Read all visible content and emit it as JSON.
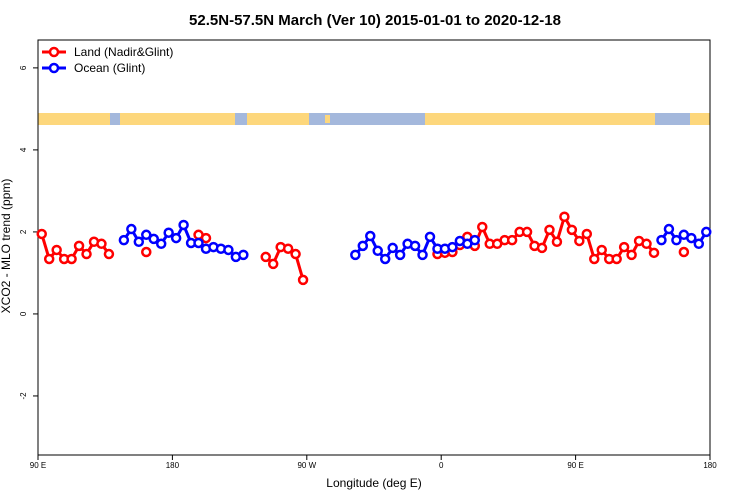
{
  "chart_data": {
    "type": "line",
    "title": "52.5N-57.5N March (Ver 10)   2015-01-01 to 2020-12-18",
    "x_label": "Longitude (deg E)",
    "y_label": "XCO2 - MLO trend (ppm)",
    "xlim": [
      90,
      540
    ],
    "ylim": [
      -3.44,
      6.68
    ],
    "xticks": [
      {
        "value": 90,
        "label": "90 E"
      },
      180,
      {
        "value": 270,
        "label": "90 W"
      },
      {
        "value": 360,
        "label": "0"
      },
      {
        "value": 450,
        "label": "90 E"
      },
      {
        "value": 540,
        "label": "180"
      }
    ],
    "yticks": [
      -2,
      0,
      2,
      4,
      6
    ],
    "legend": "top-left",
    "series": [
      {
        "name": "Land (Nadir&Glint)",
        "color": "#ff0000",
        "x": [
          92.5,
          97.5,
          102.5,
          107.5,
          112.5,
          117.5,
          122.5,
          127.5,
          132.5,
          137.5,
          142.5,
          162.5,
          167.5,
          197.5,
          202.5,
          207.5,
          242.5,
          247.5,
          252.5,
          257.5,
          262.5,
          267.5,
          272.5,
          357.5,
          362.5,
          367.5,
          372.5,
          377.5,
          382.5,
          387.5,
          392.5,
          397.5,
          402.5,
          407.5,
          412.5,
          417.5,
          422.5,
          427.5,
          432.5,
          437.5,
          442.5,
          447.5,
          452.5,
          457.5,
          462.5,
          467.5,
          472.5,
          477.5,
          482.5,
          487.5,
          492.5,
          497.5,
          502.5,
          507.5,
          522.5
        ],
        "values": [
          1.95,
          1.34,
          1.56,
          1.34,
          1.34,
          1.66,
          1.46,
          1.76,
          1.71,
          1.46,
          null,
          1.51,
          null,
          1.93,
          1.85,
          null,
          1.39,
          1.22,
          1.63,
          1.59,
          1.46,
          0.83,
          null,
          1.46,
          1.49,
          1.51,
          1.68,
          1.88,
          1.66,
          2.12,
          1.71,
          1.71,
          1.8,
          1.8,
          2.0,
          2.0,
          1.66,
          1.61,
          2.05,
          1.76,
          2.37,
          2.05,
          1.78,
          1.95,
          1.34,
          1.56,
          1.34,
          1.34,
          1.63,
          1.44,
          1.78,
          1.71,
          1.49,
          null,
          1.51
        ]
      },
      {
        "name": "Ocean (Glint)",
        "color": "#0000ff",
        "x": [
          147.5,
          152.5,
          157.5,
          162.5,
          167.5,
          172.5,
          177.5,
          182.5,
          187.5,
          192.5,
          197.5,
          202.5,
          207.5,
          212.5,
          217.5,
          222.5,
          227.5,
          232.5,
          302.5,
          307.5,
          312.5,
          317.5,
          322.5,
          327.5,
          332.5,
          337.5,
          342.5,
          347.5,
          352.5,
          357.5,
          362.5,
          367.5,
          372.5,
          377.5,
          382.5,
          387.5,
          507.5,
          512.5,
          517.5,
          522.5,
          527.5,
          532.5,
          537.5
        ],
        "values": [
          1.8,
          2.07,
          1.76,
          1.93,
          1.83,
          1.71,
          1.98,
          1.85,
          2.17,
          1.73,
          1.73,
          1.59,
          1.63,
          1.59,
          1.56,
          1.39,
          1.44,
          null,
          1.44,
          1.66,
          1.9,
          1.54,
          1.34,
          1.61,
          1.44,
          1.71,
          1.66,
          1.44,
          1.88,
          1.59,
          1.59,
          1.63,
          1.78,
          1.71,
          1.8,
          null,
          1.8,
          2.07,
          1.8,
          1.93,
          1.85,
          1.71,
          2.0
        ]
      }
    ]
  }
}
